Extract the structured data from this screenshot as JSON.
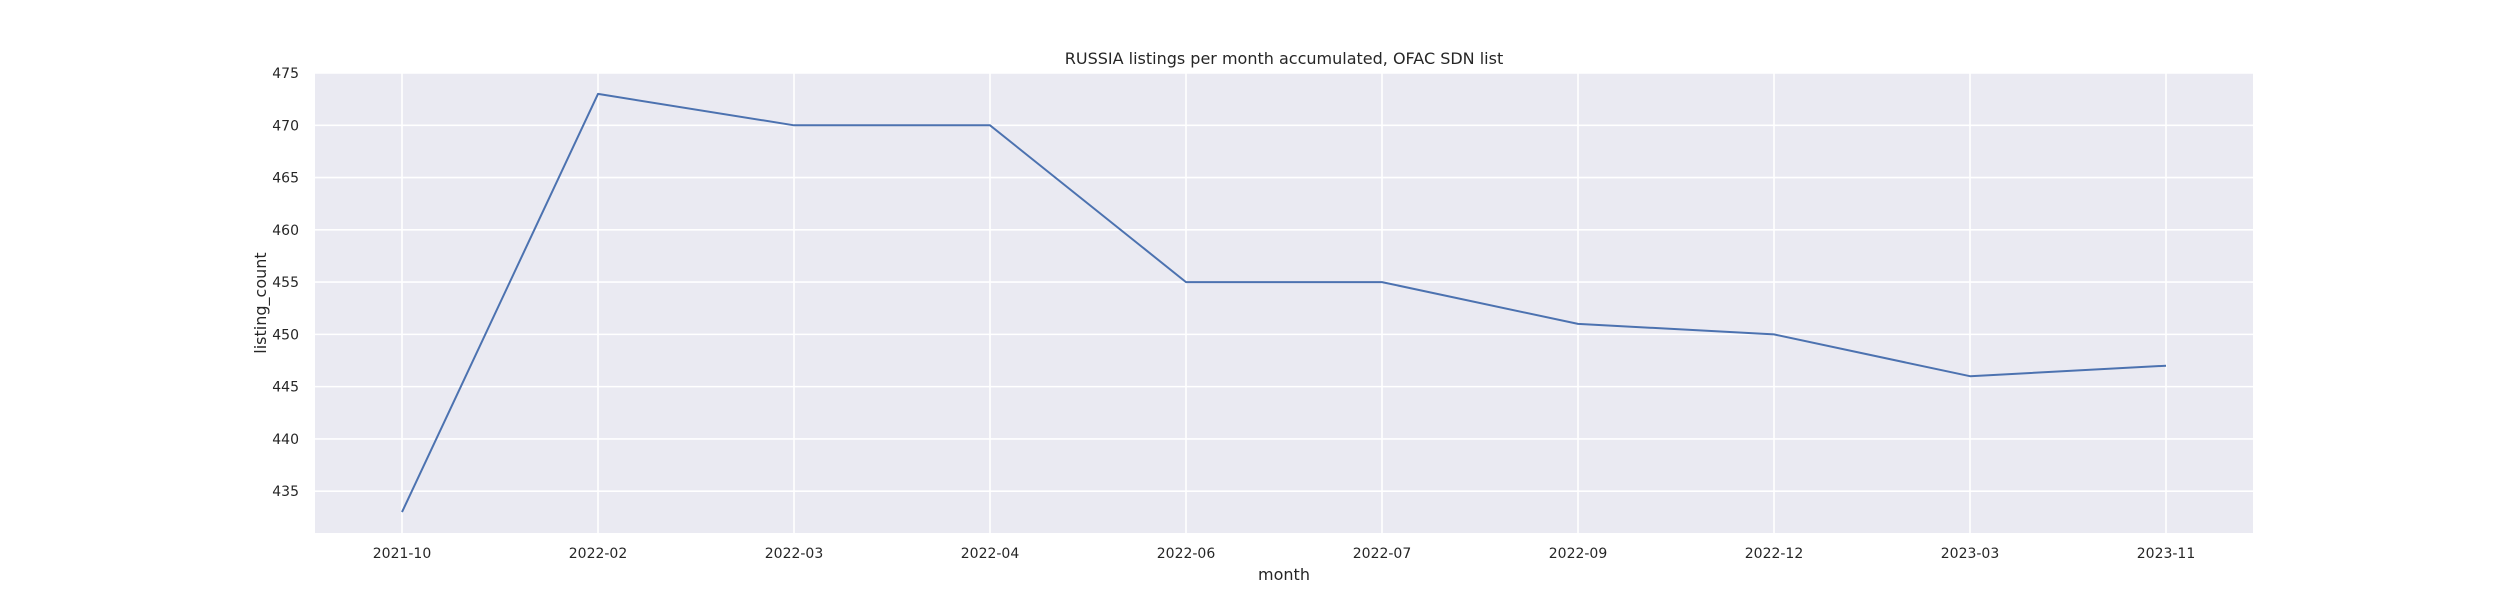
{
  "chart_data": {
    "type": "line",
    "title": "RUSSIA listings per month accumulated, OFAC SDN list",
    "xlabel": "month",
    "ylabel": "listing_count",
    "categories": [
      "2021-10",
      "2022-02",
      "2022-03",
      "2022-04",
      "2022-06",
      "2022-07",
      "2022-09",
      "2022-12",
      "2023-03",
      "2023-11"
    ],
    "series": [
      {
        "values": [
          433,
          473,
          470,
          470,
          455,
          455,
          451,
          450,
          446,
          447
        ]
      }
    ],
    "ylim": [
      431,
      475
    ],
    "yticks": [
      435,
      440,
      445,
      450,
      455,
      460,
      465,
      470,
      475
    ],
    "grid": true,
    "legend": "none",
    "colors": {
      "line": "#4c72b0",
      "background": "#eaeaf2",
      "grid": "#ffffff"
    }
  }
}
